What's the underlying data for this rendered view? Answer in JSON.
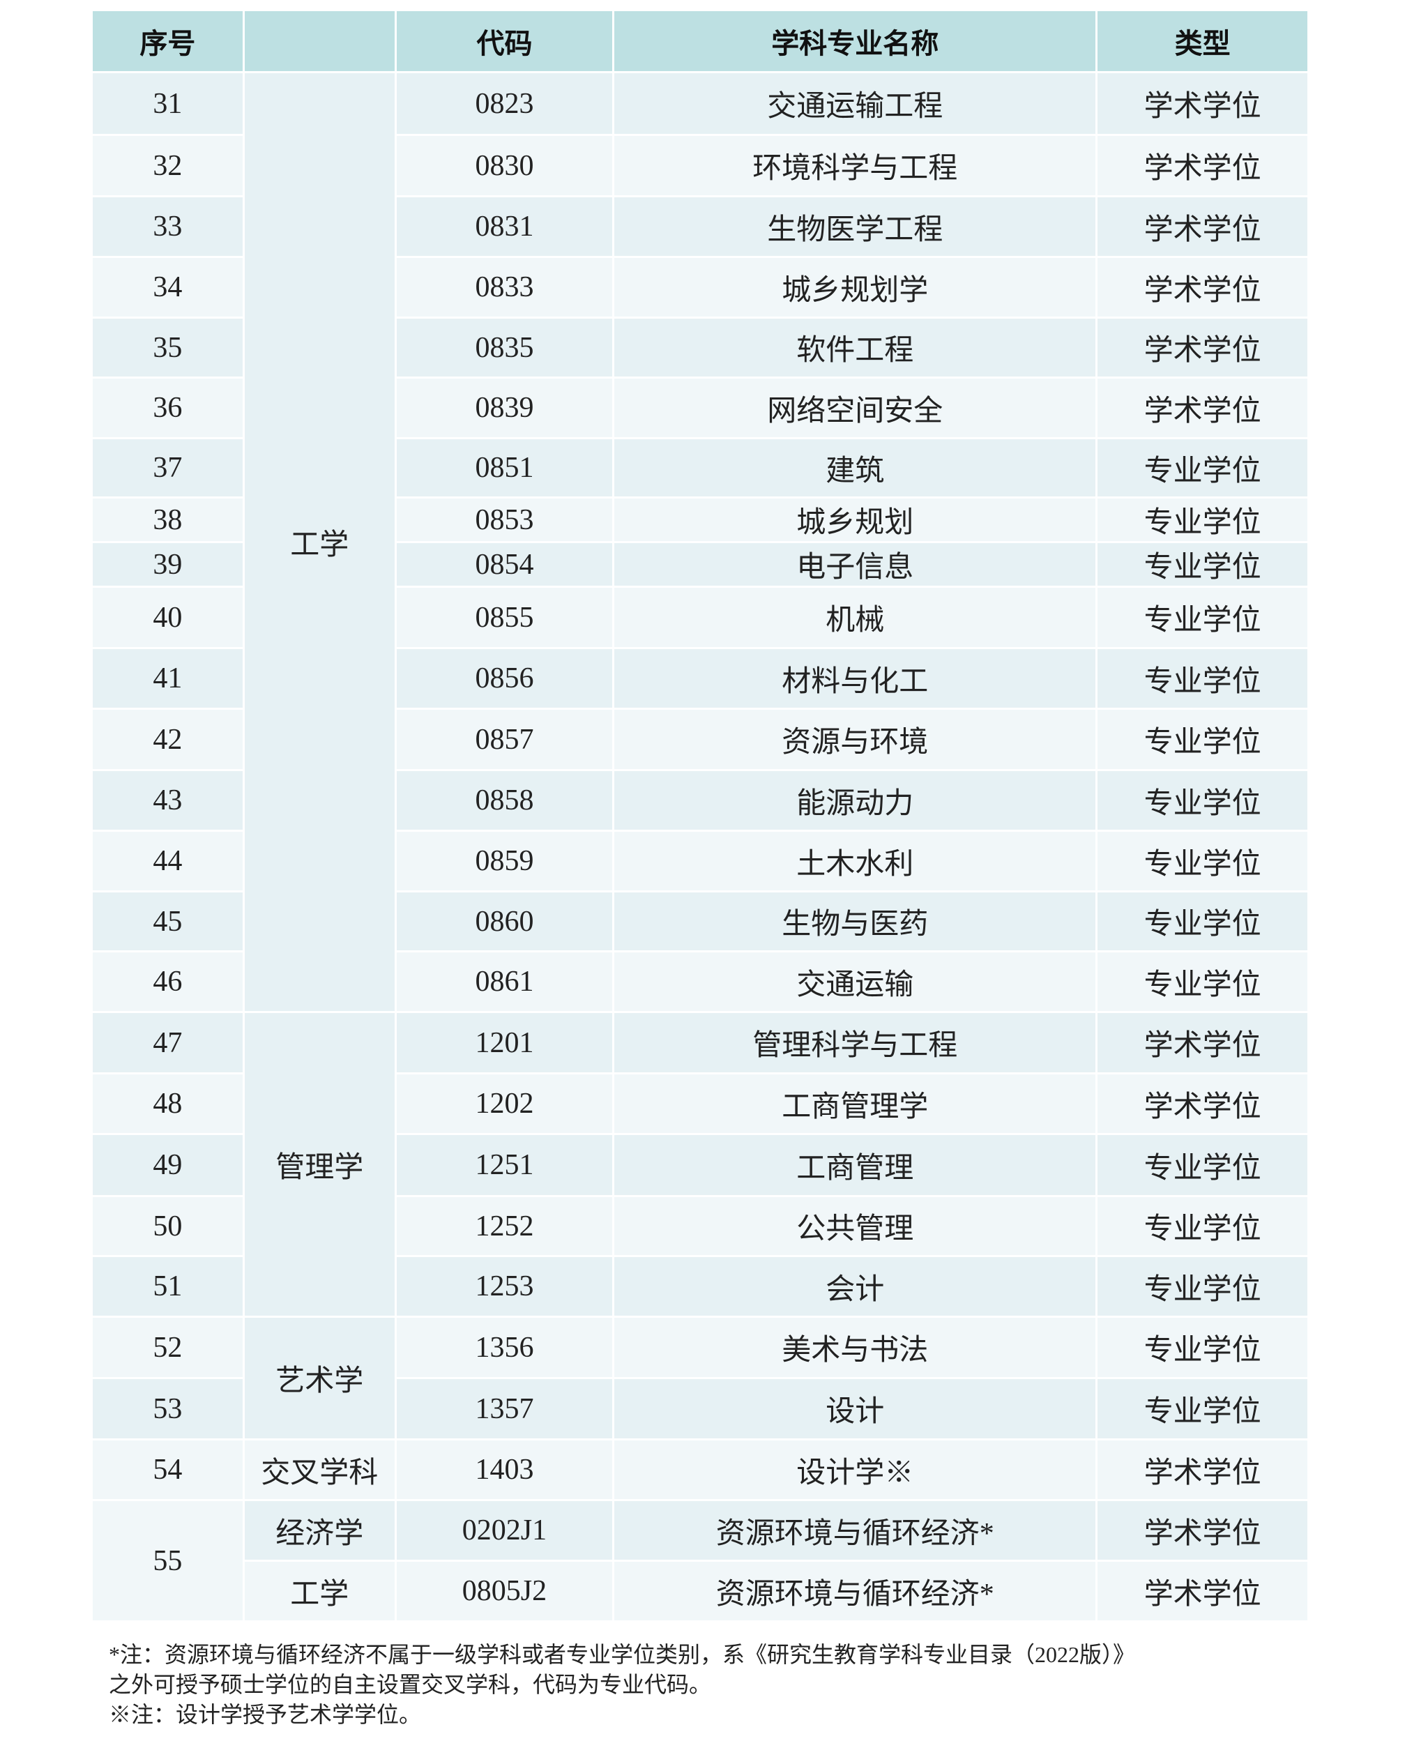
{
  "table": {
    "headers": [
      "序号",
      "",
      "代码",
      "学科专业名称",
      "类型"
    ],
    "rows": [
      {
        "seq": "31",
        "category": "工学",
        "code": "0823",
        "name": "交通运输工程",
        "type": "学术学位"
      },
      {
        "seq": "32",
        "category": "工学",
        "code": "0830",
        "name": "环境科学与工程",
        "type": "学术学位"
      },
      {
        "seq": "33",
        "category": "工学",
        "code": "0831",
        "name": "生物医学工程",
        "type": "学术学位"
      },
      {
        "seq": "34",
        "category": "工学",
        "code": "0833",
        "name": "城乡规划学",
        "type": "学术学位"
      },
      {
        "seq": "35",
        "category": "工学",
        "code": "0835",
        "name": "软件工程",
        "type": "学术学位"
      },
      {
        "seq": "36",
        "category": "工学",
        "code": "0839",
        "name": "网络空间安全",
        "type": "学术学位"
      },
      {
        "seq": "37",
        "category": "工学",
        "code": "0851",
        "name": "建筑",
        "type": "专业学位"
      },
      {
        "seq": "38",
        "category": "工学",
        "code": "0853",
        "name": "城乡规划",
        "type": "专业学位"
      },
      {
        "seq": "39",
        "category": "工学",
        "code": "0854",
        "name": "电子信息",
        "type": "专业学位"
      },
      {
        "seq": "40",
        "category": "工学",
        "code": "0855",
        "name": "机械",
        "type": "专业学位"
      },
      {
        "seq": "41",
        "category": "工学",
        "code": "0856",
        "name": "材料与化工",
        "type": "专业学位"
      },
      {
        "seq": "42",
        "category": "工学",
        "code": "0857",
        "name": "资源与环境",
        "type": "专业学位"
      },
      {
        "seq": "43",
        "category": "工学",
        "code": "0858",
        "name": "能源动力",
        "type": "专业学位"
      },
      {
        "seq": "44",
        "category": "工学",
        "code": "0859",
        "name": "土木水利",
        "type": "专业学位"
      },
      {
        "seq": "45",
        "category": "工学",
        "code": "0860",
        "name": "生物与医药",
        "type": "专业学位"
      },
      {
        "seq": "46",
        "category": "工学",
        "code": "0861",
        "name": "交通运输",
        "type": "专业学位"
      },
      {
        "seq": "47",
        "category": "管理学",
        "code": "1201",
        "name": "管理科学与工程",
        "type": "学术学位"
      },
      {
        "seq": "48",
        "category": "管理学",
        "code": "1202",
        "name": "工商管理学",
        "type": "学术学位"
      },
      {
        "seq": "49",
        "category": "管理学",
        "code": "1251",
        "name": "工商管理",
        "type": "专业学位"
      },
      {
        "seq": "50",
        "category": "管理学",
        "code": "1252",
        "name": "公共管理",
        "type": "专业学位"
      },
      {
        "seq": "51",
        "category": "管理学",
        "code": "1253",
        "name": "会计",
        "type": "专业学位"
      },
      {
        "seq": "52",
        "category": "艺术学",
        "code": "1356",
        "name": "美术与书法",
        "type": "专业学位"
      },
      {
        "seq": "53",
        "category": "艺术学",
        "code": "1357",
        "name": "设计",
        "type": "专业学位"
      },
      {
        "seq": "54",
        "category": "交叉学科",
        "code": "1403",
        "name": "设计学※",
        "type": "学术学位"
      },
      {
        "seq": "55",
        "category": "经济学",
        "code": "0202J1",
        "name": "资源环境与循环经济*",
        "type": "学术学位"
      },
      {
        "seq": "55",
        "category": "工学",
        "code": "0805J2",
        "name": "资源环境与循环经济*",
        "type": "学术学位"
      }
    ]
  },
  "notes": [
    "*注：资源环境与循环经济不属于一级学科或者专业学位类别，系《研究生教育学科专业目录（2022版）》",
    "之外可授予硕士学位的自主设置交叉学科，代码为专业代码。",
    "※注：设计学授予艺术学学位。"
  ],
  "colors": {
    "header": "#bde0e2",
    "stripe_dark": "#e6f1f4",
    "stripe_light": "#f1f7f9"
  }
}
